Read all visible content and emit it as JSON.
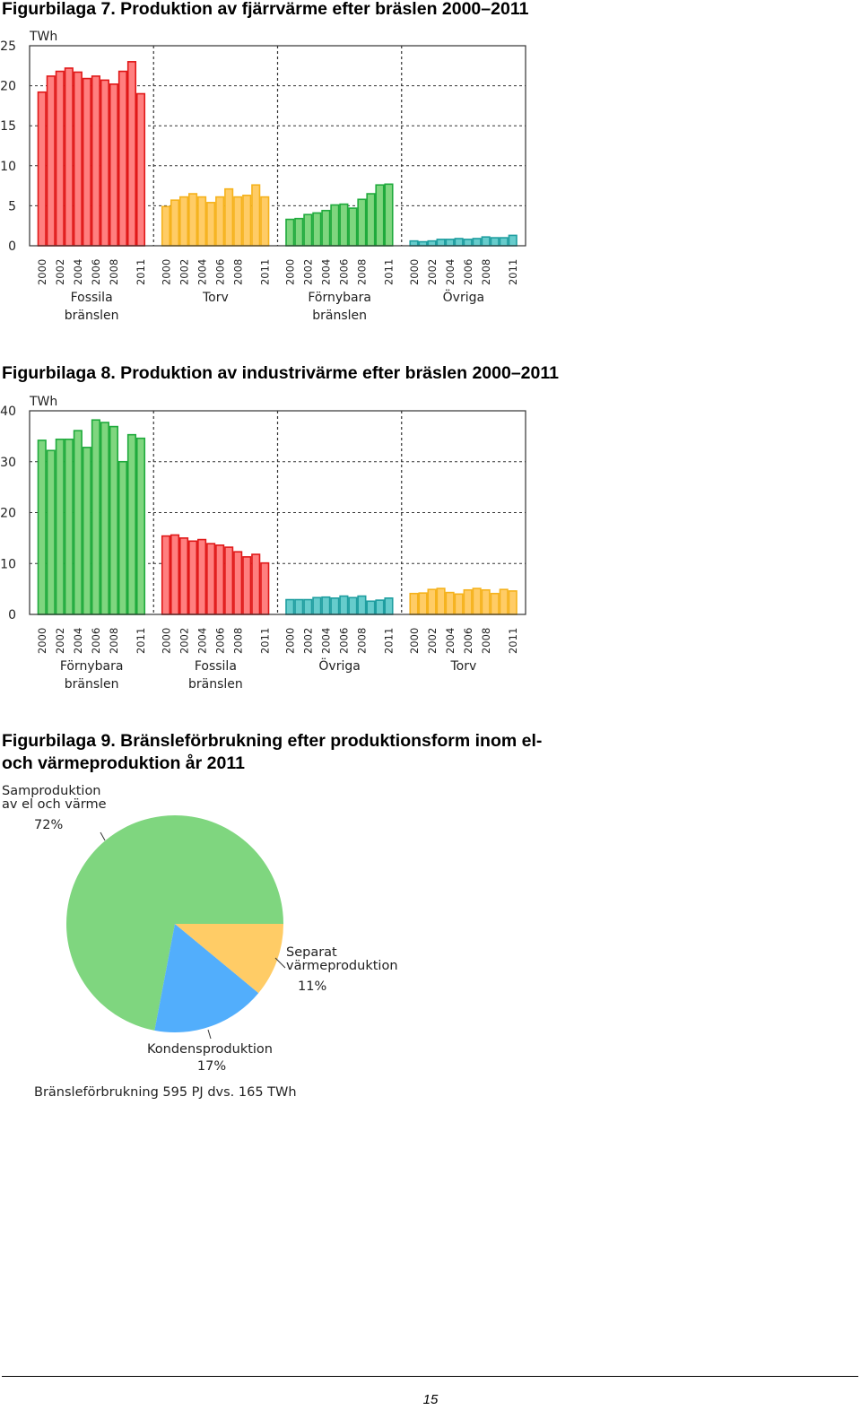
{
  "figures": {
    "fig7_title": "Figurbilaga 7. Produktion av fjärrvärme efter bräslen 2000–2011",
    "fig8_title": "Figurbilaga 8. Produktion av industrivärme efter bräslen 2000–2011",
    "fig9_title": "Figurbilaga 9. Bränsleförbrukning efter produktionsform inom el-\noch värmeproduktion år 2011"
  },
  "colors": {
    "red": "#ff7f7f",
    "red_edge": "#e01818",
    "yellow": "#ffcc66",
    "yellow_edge": "#f5b21c",
    "green": "#7fd67f",
    "green_edge": "#1faa3c",
    "teal": "#66cccc",
    "teal_edge": "#1f9ea0",
    "blue": "#52aefc"
  },
  "chart_data": [
    {
      "type": "bar",
      "title": "Figurbilaga 7. Produktion av fjärrvärme efter bräslen 2000–2011",
      "ylabel": "TWh",
      "ylim": [
        0,
        25
      ],
      "yticks": [
        "0",
        "5",
        "10",
        "15",
        "20",
        "25"
      ],
      "grid": true,
      "year_labels": [
        "2000",
        "2002",
        "2004",
        "2006",
        "2008",
        "2011"
      ],
      "groups": [
        {
          "name": "Fossila\nbränslen",
          "color": "red",
          "values": [
            19.2,
            21.2,
            21.8,
            22.2,
            21.7,
            20.9,
            21.2,
            20.7,
            20.2,
            21.8,
            23.0,
            19.0
          ]
        },
        {
          "name": "Torv",
          "color": "yellow",
          "values": [
            4.9,
            5.7,
            6.1,
            6.5,
            6.1,
            5.4,
            6.1,
            7.1,
            6.1,
            6.3,
            7.6,
            6.1
          ]
        },
        {
          "name": "Förnybara\nbränslen",
          "color": "green",
          "values": [
            3.3,
            3.4,
            3.9,
            4.1,
            4.4,
            5.1,
            5.2,
            4.7,
            5.8,
            6.5,
            7.6,
            7.7
          ]
        },
        {
          "name": "Övriga",
          "color": "teal",
          "values": [
            0.6,
            0.5,
            0.6,
            0.8,
            0.8,
            0.9,
            0.8,
            0.9,
            1.1,
            1.0,
            1.0,
            1.3
          ]
        }
      ]
    },
    {
      "type": "bar",
      "title": "Figurbilaga 8. Produktion av industrivärme efter bräslen 2000–2011",
      "ylabel": "TWh",
      "ylim": [
        0,
        40
      ],
      "yticks": [
        "0",
        "10",
        "20",
        "30",
        "40"
      ],
      "grid": true,
      "year_labels": [
        "2000",
        "2002",
        "2004",
        "2006",
        "2008",
        "2011"
      ],
      "groups": [
        {
          "name": "Förnybara\nbränslen",
          "color": "green",
          "values": [
            34.2,
            32.2,
            34.4,
            34.4,
            36.1,
            32.8,
            38.2,
            37.7,
            36.9,
            30.0,
            35.3,
            34.6
          ]
        },
        {
          "name": "Fossila\nbränslen",
          "color": "red",
          "values": [
            15.4,
            15.6,
            15.0,
            14.4,
            14.7,
            13.9,
            13.6,
            13.2,
            12.3,
            11.3,
            11.8,
            10.1
          ]
        },
        {
          "name": "Övriga",
          "color": "teal",
          "values": [
            2.9,
            2.9,
            2.9,
            3.3,
            3.4,
            3.2,
            3.6,
            3.3,
            3.6,
            2.6,
            2.8,
            3.2
          ]
        },
        {
          "name": "Torv",
          "color": "yellow",
          "values": [
            4.1,
            4.2,
            4.9,
            5.1,
            4.3,
            4.0,
            4.8,
            5.1,
            4.8,
            4.1,
            4.9,
            4.6
          ]
        }
      ]
    },
    {
      "type": "pie",
      "title": "Figurbilaga 9. Bränsleförbrukning efter produktionsform inom el- och värmeproduktion år 2011",
      "slices": [
        {
          "label": "Samproduktion\nav el och värme",
          "percent_label": "72%",
          "value": 72,
          "color": "green"
        },
        {
          "label": "Kondensproduktion",
          "percent_label": "17%",
          "value": 17,
          "color": "blue"
        },
        {
          "label": "Separat\nvärmeproduktion",
          "percent_label": "11%",
          "value": 11,
          "color": "yellow"
        }
      ],
      "note": "Bränsleförbrukning 595 PJ dvs. 165 TWh"
    }
  ],
  "footer": {
    "page_number": "15"
  }
}
